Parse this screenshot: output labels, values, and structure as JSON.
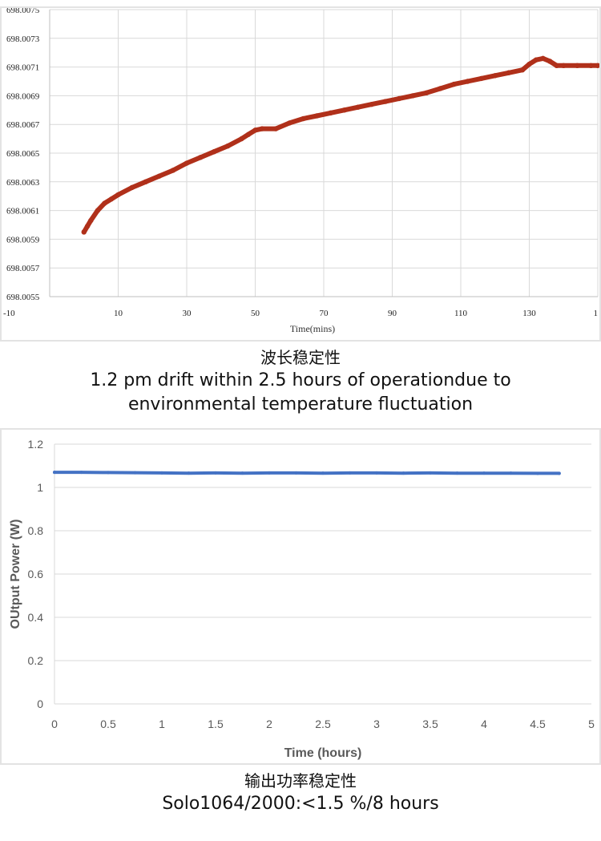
{
  "chart_data": [
    {
      "type": "line",
      "title": "",
      "xlabel": "Time(mins)",
      "ylabel": "",
      "x_ticks": [
        "-10",
        "10",
        "30",
        "50",
        "70",
        "90",
        "110",
        "130",
        "1"
      ],
      "y_ticks": [
        "698.0055",
        "698.0057",
        "698.0059",
        "698.0061",
        "698.0063",
        "698.0065",
        "698.0067",
        "698.0069",
        "698.0071",
        "698.0073",
        "698.0075"
      ],
      "xlim": [
        -10,
        150
      ],
      "ylim": [
        698.0055,
        698.0075
      ],
      "grid": true,
      "line_color": "#b0301a",
      "series": [
        {
          "x": [
            0,
            1,
            2,
            4,
            6,
            8,
            10,
            14,
            18,
            22,
            26,
            30,
            34,
            38,
            42,
            46,
            48,
            50,
            52,
            56,
            60,
            64,
            68,
            72,
            76,
            80,
            84,
            88,
            92,
            96,
            100,
            104,
            108,
            112,
            116,
            120,
            124,
            128,
            130,
            132,
            134,
            136,
            138,
            140,
            144,
            148,
            150
          ],
          "y": [
            698.00595,
            698.00599,
            698.00603,
            698.0061,
            698.00615,
            698.00618,
            698.00621,
            698.00626,
            698.0063,
            698.00634,
            698.00638,
            698.00643,
            698.00647,
            698.00651,
            698.00655,
            698.0066,
            698.00663,
            698.00666,
            698.00667,
            698.00667,
            698.00671,
            698.00674,
            698.00676,
            698.00678,
            698.0068,
            698.00682,
            698.00684,
            698.00686,
            698.00688,
            698.0069,
            698.00692,
            698.00695,
            698.00698,
            698.007,
            698.00702,
            698.00704,
            698.00706,
            698.00708,
            698.00712,
            698.00715,
            698.00716,
            698.00714,
            698.00711,
            698.00711,
            698.00711,
            698.00711,
            698.00711
          ]
        }
      ]
    },
    {
      "type": "line",
      "title": "",
      "xlabel": "Time (hours)",
      "ylabel": "OUtput Power (W)",
      "x_ticks": [
        "0",
        "0.5",
        "1",
        "1.5",
        "2",
        "2.5",
        "3",
        "3.5",
        "4",
        "4.5",
        "5"
      ],
      "y_ticks": [
        "0",
        "0.2",
        "0.4",
        "0.6",
        "0.8",
        "1",
        "1.2"
      ],
      "xlim": [
        0,
        5
      ],
      "ylim": [
        0,
        1.2
      ],
      "grid": true,
      "line_color": "#4472c4",
      "series": [
        {
          "x": [
            0,
            0.25,
            0.5,
            0.75,
            1,
            1.25,
            1.5,
            1.75,
            2,
            2.25,
            2.5,
            2.75,
            3,
            3.25,
            3.5,
            3.75,
            4,
            4.25,
            4.5,
            4.7
          ],
          "y": [
            1.07,
            1.07,
            1.069,
            1.068,
            1.067,
            1.066,
            1.067,
            1.066,
            1.067,
            1.067,
            1.066,
            1.067,
            1.067,
            1.066,
            1.067,
            1.066,
            1.066,
            1.066,
            1.065,
            1.065
          ]
        }
      ]
    }
  ],
  "captions": {
    "wavelength_zh": "波长稳定性",
    "wavelength_en_line1": "1.2 pm drift within 2.5 hours of operationdue to",
    "wavelength_en_line2": "environmental temperature fluctuation",
    "power_zh": "输出功率稳定性",
    "power_en": "Solo1064/2000:<1.5 %/8 hours"
  }
}
